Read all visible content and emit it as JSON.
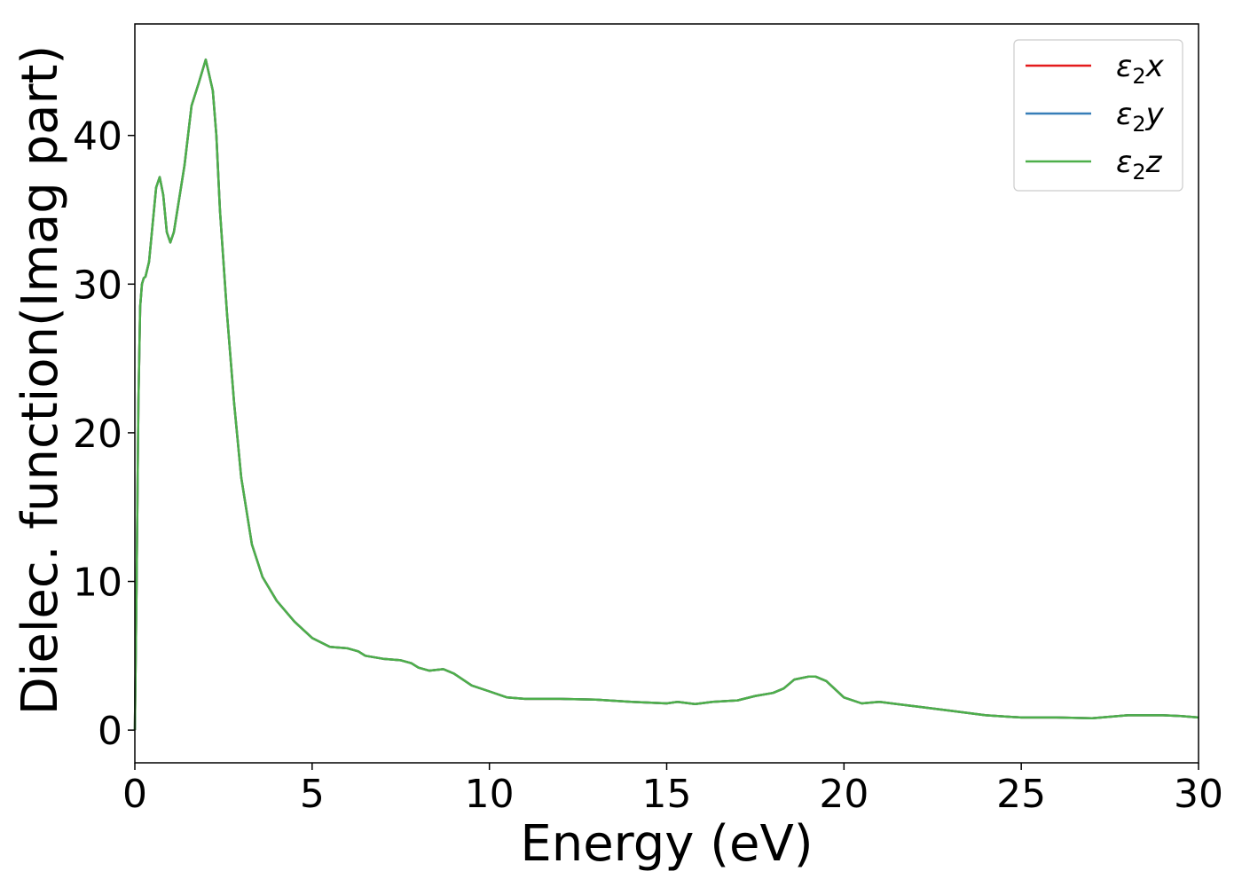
{
  "chart_data": {
    "type": "line",
    "xlabel": "Energy (eV)",
    "ylabel": "Dielec. function(Imag part)",
    "xlim": [
      0,
      30
    ],
    "ylim": [
      -2.2,
      47.5
    ],
    "xticks": [
      0,
      5,
      10,
      15,
      20,
      25,
      30
    ],
    "xtick_labels": [
      "0",
      "5",
      "10",
      "15",
      "20",
      "25",
      "30"
    ],
    "yticks": [
      0,
      10,
      20,
      30,
      40
    ],
    "ytick_labels": [
      "0",
      "10",
      "20",
      "30",
      "40"
    ],
    "grid": false,
    "legend_position": "top-right",
    "x": [
      0,
      0.05,
      0.1,
      0.15,
      0.2,
      0.25,
      0.3,
      0.4,
      0.5,
      0.6,
      0.7,
      0.8,
      0.9,
      1.0,
      1.1,
      1.2,
      1.4,
      1.6,
      1.8,
      2.0,
      2.2,
      2.3,
      2.4,
      2.6,
      2.8,
      3.0,
      3.3,
      3.6,
      4.0,
      4.5,
      5.0,
      5.5,
      6.0,
      6.3,
      6.5,
      7.0,
      7.5,
      7.8,
      8.0,
      8.3,
      8.7,
      9.0,
      9.5,
      10.0,
      10.5,
      11.0,
      12.0,
      13.0,
      14.0,
      14.5,
      15.0,
      15.3,
      15.8,
      16.3,
      17.0,
      17.5,
      18.0,
      18.3,
      18.6,
      19.0,
      19.2,
      19.5,
      20.0,
      20.5,
      21.0,
      22.0,
      23.0,
      24.0,
      25.0,
      26.0,
      27.0,
      28.0,
      29.0,
      29.5,
      30.0
    ],
    "series": [
      {
        "name": "ε2x",
        "label_base": "ε",
        "label_sub": "2",
        "label_suffix": "x",
        "color": "#e41a1c",
        "values": [
          0,
          10,
          22,
          28.5,
          30,
          30.4,
          30.5,
          31.5,
          34,
          36.5,
          37.2,
          36,
          33.5,
          32.8,
          33.5,
          35,
          38,
          42,
          43.5,
          45.1,
          43,
          40,
          35,
          28,
          22,
          17,
          12.5,
          10.3,
          8.7,
          7.3,
          6.2,
          5.6,
          5.5,
          5.3,
          5.0,
          4.8,
          4.7,
          4.5,
          4.2,
          4.0,
          4.1,
          3.8,
          3.0,
          2.6,
          2.2,
          2.1,
          2.1,
          2.05,
          1.9,
          1.85,
          1.8,
          1.9,
          1.75,
          1.9,
          2.0,
          2.3,
          2.5,
          2.8,
          3.4,
          3.6,
          3.6,
          3.3,
          2.2,
          1.8,
          1.9,
          1.6,
          1.3,
          1.0,
          0.85,
          0.85,
          0.8,
          1.0,
          1.0,
          0.95,
          0.85
        ]
      },
      {
        "name": "ε2y",
        "label_base": "ε",
        "label_sub": "2",
        "label_suffix": "y",
        "color": "#377eb8",
        "values": [
          0,
          10,
          22,
          28.5,
          30,
          30.4,
          30.5,
          31.5,
          34,
          36.5,
          37.2,
          36,
          33.5,
          32.8,
          33.5,
          35,
          38,
          42,
          43.5,
          45.1,
          43,
          40,
          35,
          28,
          22,
          17,
          12.5,
          10.3,
          8.7,
          7.3,
          6.2,
          5.6,
          5.5,
          5.3,
          5.0,
          4.8,
          4.7,
          4.5,
          4.2,
          4.0,
          4.1,
          3.8,
          3.0,
          2.6,
          2.2,
          2.1,
          2.1,
          2.05,
          1.9,
          1.85,
          1.8,
          1.9,
          1.75,
          1.9,
          2.0,
          2.3,
          2.5,
          2.8,
          3.4,
          3.6,
          3.6,
          3.3,
          2.2,
          1.8,
          1.9,
          1.6,
          1.3,
          1.0,
          0.85,
          0.85,
          0.8,
          1.0,
          1.0,
          0.95,
          0.85
        ]
      },
      {
        "name": "ε2z",
        "label_base": "ε",
        "label_sub": "2",
        "label_suffix": "z",
        "color": "#4daf4a",
        "values": [
          0,
          10,
          22,
          28.5,
          30,
          30.4,
          30.5,
          31.5,
          34,
          36.5,
          37.2,
          36,
          33.5,
          32.8,
          33.5,
          35,
          38,
          42,
          43.5,
          45.1,
          43,
          40,
          35,
          28,
          22,
          17,
          12.5,
          10.3,
          8.7,
          7.3,
          6.2,
          5.6,
          5.5,
          5.3,
          5.0,
          4.8,
          4.7,
          4.5,
          4.2,
          4.0,
          4.1,
          3.8,
          3.0,
          2.6,
          2.2,
          2.1,
          2.1,
          2.05,
          1.9,
          1.85,
          1.8,
          1.9,
          1.75,
          1.9,
          2.0,
          2.3,
          2.5,
          2.8,
          3.4,
          3.6,
          3.6,
          3.3,
          2.2,
          1.8,
          1.9,
          1.6,
          1.3,
          1.0,
          0.85,
          0.85,
          0.8,
          1.0,
          1.0,
          0.95,
          0.85
        ]
      }
    ]
  }
}
